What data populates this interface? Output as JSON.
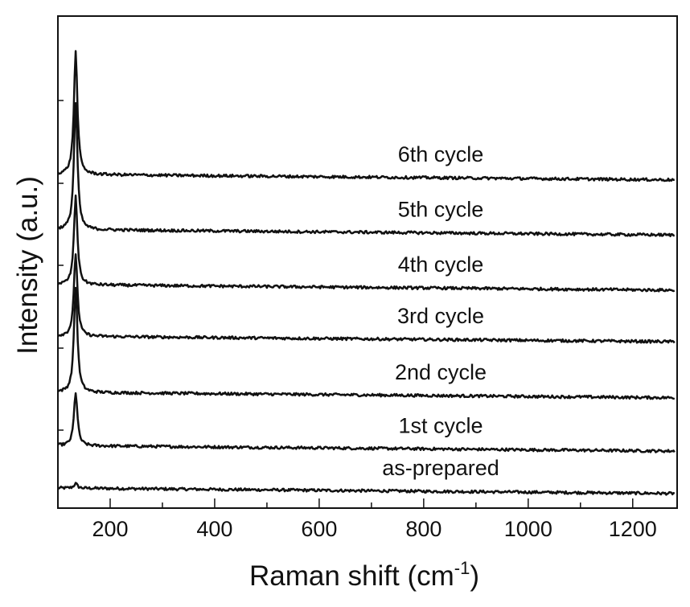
{
  "chart_data": {
    "type": "line",
    "title": "",
    "xlabel": "Raman shift  (cm",
    "xlabel_superscript": "-1",
    "xlabel_close": ")",
    "ylabel": "Intensity (a.u.)",
    "xlim": [
      100,
      1285
    ],
    "x_ticks": [
      "200",
      "400",
      "600",
      "800",
      "1000",
      "1200"
    ],
    "stacked_offset": true,
    "y_ticks_labeled": false,
    "grid": false,
    "legend": "none (labels placed above each trace)",
    "line_color": "#111111",
    "peak_center": 134,
    "peak_width": 8,
    "series": [
      {
        "name": "as-prepared",
        "baseline": 0.0,
        "peak_height": 0.01
      },
      {
        "name": "1st cycle",
        "baseline": 0.093,
        "peak_height": 0.117
      },
      {
        "name": "2nd cycle",
        "baseline": 0.21,
        "peak_height": 0.23
      },
      {
        "name": "3rd cycle",
        "baseline": 0.333,
        "peak_height": 0.182
      },
      {
        "name": "4th cycle",
        "baseline": 0.446,
        "peak_height": 0.194
      },
      {
        "name": "5th cycle",
        "baseline": 0.567,
        "peak_height": 0.278
      },
      {
        "name": "6th cycle",
        "baseline": 0.688,
        "peak_height": 0.269
      }
    ]
  }
}
